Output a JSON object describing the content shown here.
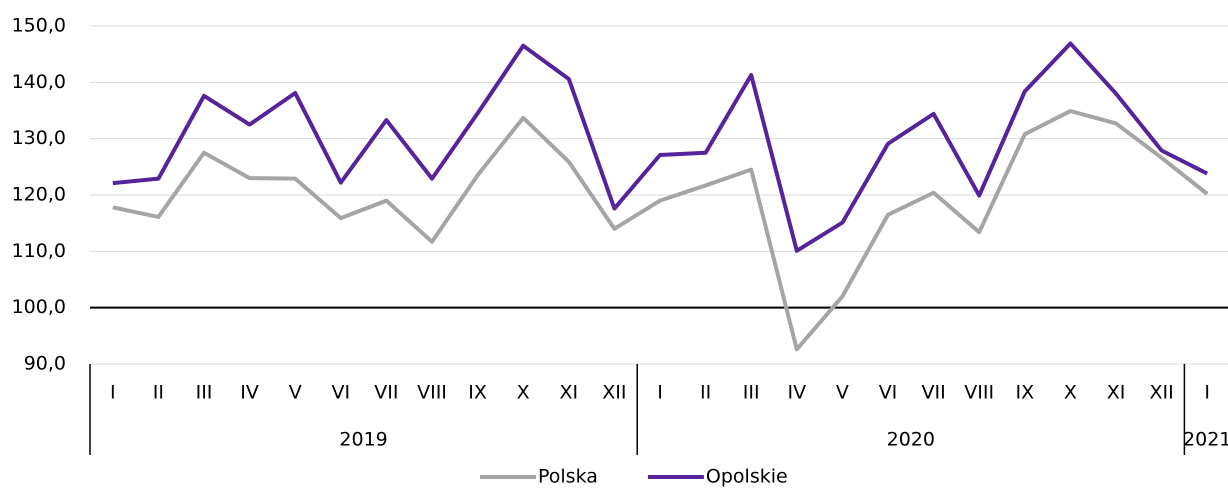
{
  "chart_data": {
    "type": "line",
    "categories": [
      "I",
      "II",
      "III",
      "IV",
      "V",
      "VI",
      "VII",
      "VIII",
      "IX",
      "X",
      "XI",
      "XII",
      "I",
      "II",
      "III",
      "IV",
      "V",
      "VI",
      "VII",
      "VIII",
      "IX",
      "X",
      "XI",
      "XII",
      "I"
    ],
    "x_groups": [
      "2019",
      "2020",
      "2021"
    ],
    "series": [
      {
        "name": "Polska",
        "color": "#a5a5a5",
        "values": [
          117.8,
          116.1,
          127.5,
          123.0,
          122.9,
          115.9,
          119.0,
          111.7,
          123.5,
          133.7,
          125.9,
          114.0,
          119.0,
          121.7,
          124.5,
          92.6,
          102.0,
          116.5,
          120.4,
          113.4,
          130.8,
          134.9,
          132.7,
          126.6,
          120.2
        ]
      },
      {
        "name": "Opolskie",
        "color": "#55249a",
        "values": [
          122.1,
          122.9,
          137.6,
          132.5,
          138.1,
          122.2,
          133.3,
          122.9,
          134.5,
          146.5,
          140.6,
          117.6,
          127.1,
          127.5,
          141.3,
          110.1,
          115.1,
          129.1,
          134.4,
          119.9,
          138.4,
          146.9,
          138.0,
          127.9,
          123.8
        ]
      }
    ],
    "ylim": [
      90,
      150
    ],
    "yticks": [
      {
        "value": 90,
        "label": "90,0"
      },
      {
        "value": 100,
        "label": "100,0"
      },
      {
        "value": 110,
        "label": "110,0"
      },
      {
        "value": 120,
        "label": "120,0"
      },
      {
        "value": 130,
        "label": "130,0"
      },
      {
        "value": 140,
        "label": "140,0"
      },
      {
        "value": 150,
        "label": "150,0"
      }
    ],
    "reference_line": 100,
    "grid": true,
    "legend": "bottom"
  }
}
